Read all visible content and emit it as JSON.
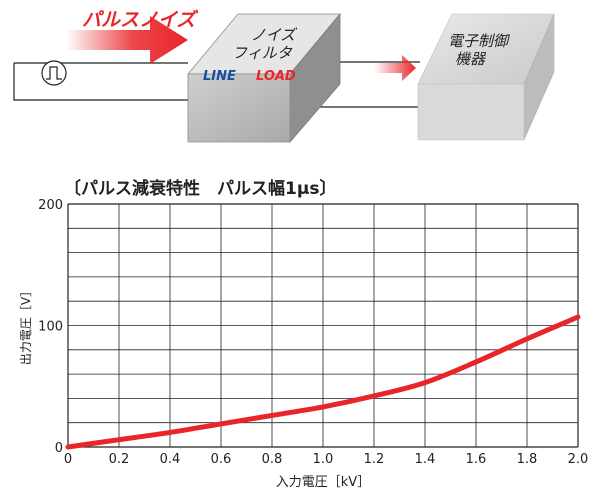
{
  "diagram": {
    "pulse_noise_label": "パルスノイズ",
    "filter_label_line1": "ノイズ",
    "filter_label_line2": "フィルタ",
    "filter_line_label": "LINE",
    "filter_load_label": "LOAD",
    "device_label_line1": "電子制御",
    "device_label_line2": "機器",
    "colors": {
      "red": "#e8262a",
      "blue": "#1a4fa0",
      "box_front": "#bfbfbf",
      "box_top": "#e8e8e8",
      "box_side": "#9a9a9a"
    }
  },
  "chart_data": {
    "type": "line",
    "title": "〔パルス減衰特性　パルス幅1μs〕",
    "xlabel": "入力電圧［kV］",
    "ylabel": "出力電圧［V］",
    "xlim": [
      0,
      2.0
    ],
    "ylim": [
      0,
      200
    ],
    "x_ticks": [
      "0",
      "0.2",
      "0.4",
      "0.6",
      "0.8",
      "1.0",
      "1.2",
      "1.4",
      "1.6",
      "1.8",
      "2.0"
    ],
    "y_ticks": [
      "0",
      "100",
      "200"
    ],
    "grid": true,
    "line_color": "#e8262a",
    "series": [
      {
        "x": [
          0,
          0.2,
          0.4,
          0.6,
          0.8,
          1.0,
          1.2,
          1.4,
          1.6,
          1.8,
          2.0
        ],
        "values": [
          0,
          6,
          12,
          19,
          26,
          33,
          42,
          53,
          70,
          89,
          107
        ]
      }
    ]
  }
}
